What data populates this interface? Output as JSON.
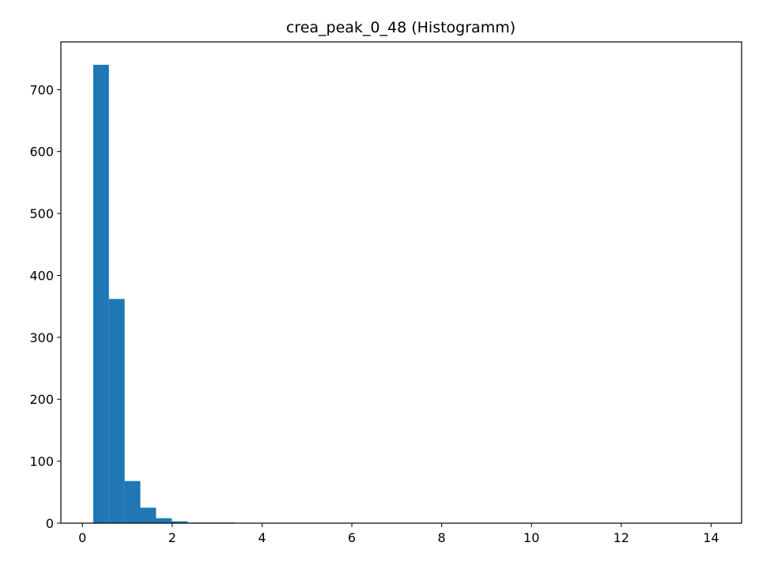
{
  "chart_data": {
    "type": "histogram",
    "title": "crea_peak_0_48 (Histogramm)",
    "xlabel": "",
    "ylabel": "",
    "bar_color": "#1f77b4",
    "xlim": [
      -0.48,
      14.68
    ],
    "ylim": [
      0,
      777
    ],
    "xticks": [
      0,
      2,
      4,
      6,
      8,
      10,
      12,
      14
    ],
    "yticks": [
      0,
      100,
      200,
      300,
      400,
      500,
      600,
      700
    ],
    "bins": [
      {
        "x0": 0.24,
        "x1": 0.59,
        "count": 740
      },
      {
        "x0": 0.59,
        "x1": 0.94,
        "count": 362
      },
      {
        "x0": 0.94,
        "x1": 1.29,
        "count": 68
      },
      {
        "x0": 1.29,
        "x1": 1.64,
        "count": 25
      },
      {
        "x0": 1.64,
        "x1": 1.99,
        "count": 8
      },
      {
        "x0": 1.99,
        "x1": 2.34,
        "count": 3
      },
      {
        "x0": 2.34,
        "x1": 2.69,
        "count": 1
      },
      {
        "x0": 2.69,
        "x1": 3.04,
        "count": 1
      },
      {
        "x0": 3.04,
        "x1": 3.39,
        "count": 1
      }
    ],
    "grid": false,
    "legend": "none"
  }
}
